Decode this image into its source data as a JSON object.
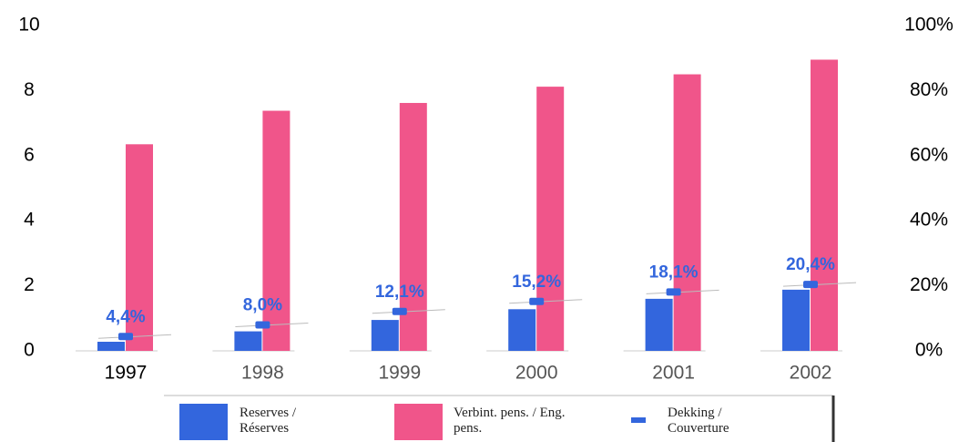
{
  "chart_data": {
    "type": "bar",
    "categories": [
      "1997",
      "1998",
      "1999",
      "2000",
      "2001",
      "2002"
    ],
    "series": [
      {
        "name": "Reserves / Réserves",
        "color": "#3366dd",
        "values": [
          0.28,
          0.6,
          0.95,
          1.28,
          1.6,
          1.88
        ]
      },
      {
        "name": "Verbint. pens. / Eng. pens.",
        "color": "#f0558a",
        "values": [
          6.35,
          7.38,
          7.62,
          8.12,
          8.5,
          8.95
        ]
      },
      {
        "name": "Dekking / Couverture",
        "color": "#3366dd",
        "axis": "y2",
        "values": [
          4.4,
          8.0,
          12.1,
          15.2,
          18.1,
          20.4
        ],
        "value_labels": [
          "4,4%",
          "8,0%",
          "12,1%",
          "15,2%",
          "18,1%",
          "20,4%"
        ]
      }
    ],
    "ylim": [
      0,
      10
    ],
    "yticks": [
      0,
      2,
      4,
      6,
      8,
      10
    ],
    "y2lim": [
      0,
      100
    ],
    "y2ticks": [
      {
        "value": 0,
        "label": "0%"
      },
      {
        "value": 20,
        "label": "20%"
      },
      {
        "value": 40,
        "label": "40%"
      },
      {
        "value": 60,
        "label": "60%"
      },
      {
        "value": 80,
        "label": "80%"
      },
      {
        "value": 100,
        "label": "100%"
      }
    ]
  }
}
